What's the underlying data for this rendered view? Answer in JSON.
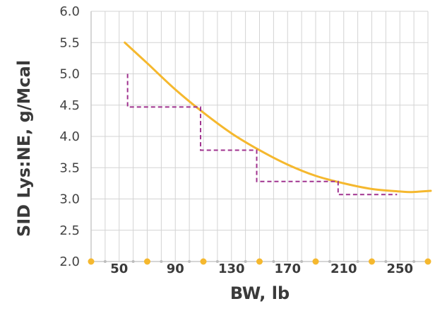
{
  "chart_data": {
    "type": "line",
    "xlabel": "BW, lb",
    "ylabel": "SID Lys:NE, g/Mcal",
    "xlim": [
      30,
      270
    ],
    "ylim": [
      2.0,
      6.0
    ],
    "x_ticks": [
      "50",
      "90",
      "130",
      "170",
      "210",
      "250"
    ],
    "y_ticks": [
      "2.0",
      "2.5",
      "3.0",
      "3.5",
      "4.0",
      "4.5",
      "5.0",
      "5.5",
      "6.0"
    ],
    "grid": true,
    "series": [
      {
        "style": "solid",
        "color": "#f5b82e",
        "x": [
          54,
          70,
          90,
          110,
          130,
          150,
          170,
          190,
          210,
          230,
          250,
          258,
          272
        ],
        "y": [
          5.5,
          5.17,
          4.75,
          4.38,
          4.05,
          3.78,
          3.55,
          3.37,
          3.25,
          3.16,
          3.12,
          3.11,
          3.13
        ]
      },
      {
        "style": "dashed",
        "color": "#a0338f",
        "x": [
          56,
          56,
          108,
          108,
          148,
          148,
          206,
          206,
          248
        ],
        "y": [
          5.0,
          4.47,
          4.47,
          3.78,
          3.78,
          3.28,
          3.28,
          3.07,
          3.07
        ]
      }
    ],
    "x_axis_markers": [
      30,
      70,
      110,
      150,
      190,
      230,
      270
    ],
    "colors": {
      "grid": "#d3d3d3",
      "axis": "#c8c8c8",
      "marker": "#f5b82e"
    }
  }
}
